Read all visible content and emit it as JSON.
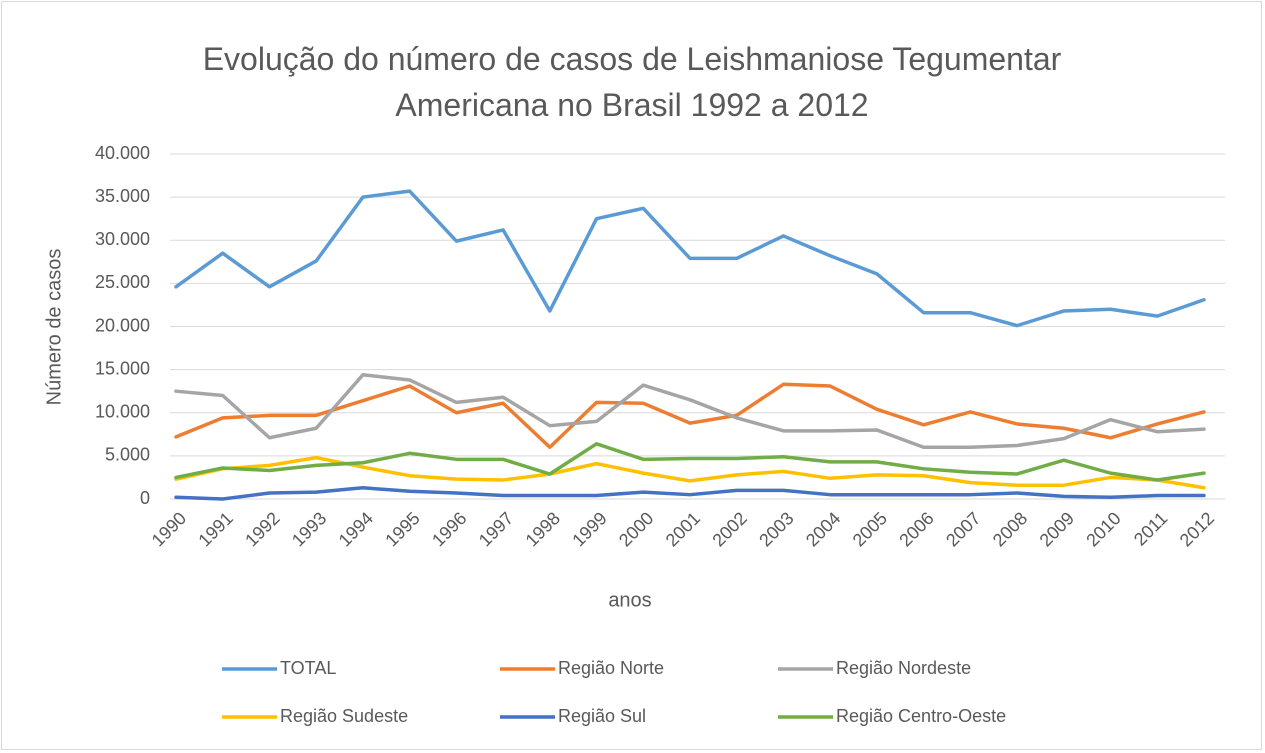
{
  "chart_data": {
    "type": "line",
    "title": "Evolução do número de casos de Leishmaniose Tegumentar Americana no Brasil 1992 a 2012",
    "xlabel": "anos",
    "ylabel": "Número de casos",
    "categories": [
      "1990",
      "1991",
      "1992",
      "1993",
      "1994",
      "1995",
      "1996",
      "1997",
      "1998",
      "1999",
      "2000",
      "2001",
      "2002",
      "2003",
      "2004",
      "2005",
      "2006",
      "2007",
      "2008",
      "2009",
      "2010",
      "2011",
      "2012"
    ],
    "ylim": [
      0,
      40000
    ],
    "yticks": [
      0,
      {
        "value": 5000,
        "label": "5.000"
      },
      {
        "value": 10000,
        "label": "10.000"
      },
      {
        "value": 15000,
        "label": "15.000"
      },
      {
        "value": 20000,
        "label": "20.000"
      },
      {
        "value": 25000,
        "label": "25.000"
      },
      {
        "value": 30000,
        "label": "30.000"
      },
      {
        "value": 35000,
        "label": "35.000"
      },
      {
        "value": 40000,
        "label": "40.000"
      }
    ],
    "grid": true,
    "legend": "bottom",
    "series": [
      {
        "name": "TOTAL",
        "color": "#5b9bd5",
        "values": [
          24600,
          28500,
          24600,
          27600,
          35000,
          35700,
          29900,
          31200,
          21800,
          32500,
          33700,
          27900,
          27900,
          30500,
          28200,
          26100,
          21600,
          21600,
          20100,
          21800,
          22000,
          21200,
          23100
        ]
      },
      {
        "name": "Região Norte",
        "color": "#ed7d31",
        "values": [
          7200,
          9400,
          9700,
          9700,
          11400,
          13100,
          10000,
          11100,
          6000,
          11200,
          11100,
          8800,
          9700,
          13300,
          13100,
          10400,
          8600,
          10100,
          8700,
          8200,
          7100,
          8700,
          10100
        ]
      },
      {
        "name": "Região Nordeste",
        "color": "#a5a5a5",
        "values": [
          12500,
          12000,
          7100,
          8200,
          14400,
          13800,
          11200,
          11800,
          8500,
          9000,
          13200,
          11500,
          9400,
          7900,
          7900,
          8000,
          6000,
          6000,
          6200,
          7000,
          9200,
          7800,
          8100
        ]
      },
      {
        "name": "Região Sudeste",
        "color": "#ffc000",
        "values": [
          2300,
          3500,
          3900,
          4800,
          3700,
          2700,
          2300,
          2200,
          2900,
          4100,
          3000,
          2100,
          2800,
          3200,
          2400,
          2800,
          2700,
          1900,
          1600,
          1600,
          2500,
          2200,
          1300
        ]
      },
      {
        "name": "Região Sul",
        "color": "#4472c4",
        "values": [
          200,
          0,
          700,
          800,
          1300,
          900,
          700,
          400,
          400,
          400,
          800,
          500,
          1000,
          1000,
          500,
          500,
          500,
          500,
          700,
          300,
          200,
          400,
          400
        ]
      },
      {
        "name": "Região Centro-Oeste",
        "color": "#70ad47",
        "values": [
          2500,
          3600,
          3300,
          3900,
          4200,
          5300,
          4600,
          4600,
          2900,
          6400,
          4600,
          4700,
          4700,
          4900,
          4300,
          4300,
          3500,
          3100,
          2900,
          4500,
          3000,
          2200,
          3000
        ]
      }
    ]
  }
}
